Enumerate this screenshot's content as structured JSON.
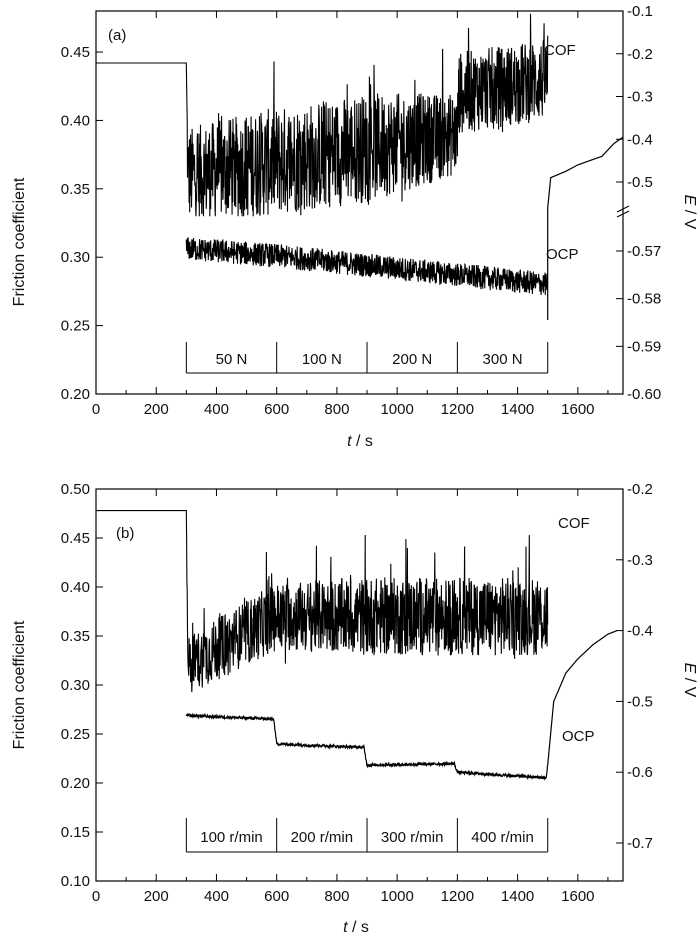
{
  "chart_data": [
    {
      "type": "line",
      "panel_label": "(a)",
      "xlabel_italic": "t",
      "xlabel_rest": " / s",
      "ylabel": "Friction coefficient",
      "y2label_italic": "E",
      "y2label_rest": " / V",
      "xlim": [
        0,
        1750
      ],
      "xticks": [
        0,
        200,
        400,
        600,
        800,
        1000,
        1200,
        1400,
        1600
      ],
      "ylim": [
        0.2,
        0.48
      ],
      "yticks": [
        "0.20",
        "0.25",
        "0.30",
        "0.35",
        "0.40",
        "0.45"
      ],
      "y2_upper_ticks": [
        "-0.1",
        "-0.2",
        "-0.3",
        "-0.4",
        "-0.5"
      ],
      "y2_lower_ticks": [
        "-0.57",
        "-0.58",
        "-0.59",
        "-0.60"
      ],
      "y2_broken_axis": true,
      "grid": false,
      "series": [
        {
          "name": "COF",
          "noisy": true,
          "x": [
            0,
            300,
            305,
            600,
            900,
            1200,
            1205,
            1500
          ],
          "y": [
            0.442,
            0.442,
            0.36,
            0.37,
            0.38,
            0.39,
            0.42,
            0.43
          ],
          "noise_amplitude": [
            0,
            0,
            0.035,
            0.04,
            0.04,
            0.03,
            0.03,
            0.03
          ]
        },
        {
          "name": "OCP",
          "noisy": true,
          "x": [
            300,
            600,
            900,
            1200,
            1500
          ],
          "y": [
            -0.5695,
            -0.571,
            -0.573,
            -0.575,
            -0.577
          ],
          "noise_amplitude": 0.0025
        },
        {
          "name": "OCP",
          "noisy": false,
          "x": [
            1510,
            1560,
            1600,
            1640,
            1680,
            1720,
            1750
          ],
          "y": [
            -0.49,
            -0.475,
            -0.46,
            -0.45,
            -0.44,
            -0.41,
            -0.395
          ]
        }
      ],
      "annotations": [
        "COF",
        "OCP"
      ],
      "stages": {
        "labels": [
          "50 N",
          "100 N",
          "200 N",
          "300 N"
        ],
        "boundaries": [
          300,
          600,
          900,
          1200,
          1500
        ]
      }
    },
    {
      "type": "line",
      "panel_label": "(b)",
      "xlabel_italic": "t",
      "xlabel_rest": " / s",
      "ylabel": "Friction coefficient",
      "y2label_italic": "E",
      "y2label_rest": " / V",
      "xlim": [
        0,
        1750
      ],
      "xticks": [
        0,
        200,
        400,
        600,
        800,
        1000,
        1200,
        1400,
        1600
      ],
      "ylim": [
        0.1,
        0.5
      ],
      "yticks": [
        "0.10",
        "0.15",
        "0.20",
        "0.25",
        "0.30",
        "0.35",
        "0.40",
        "0.45",
        "0.50"
      ],
      "y2lim": [
        -0.2,
        -0.78
      ],
      "y2ticks": [
        "-0.2",
        "-0.3",
        "-0.4",
        "-0.5",
        "-0.6",
        "-0.7"
      ],
      "grid": false,
      "series": [
        {
          "name": "COF",
          "noisy": true,
          "x": [
            0,
            300,
            305,
            600,
            900,
            1200,
            1500
          ],
          "y": [
            0.478,
            0.478,
            0.32,
            0.37,
            0.37,
            0.37,
            0.37
          ],
          "noise_amplitude": [
            0,
            0,
            0.03,
            0.035,
            0.04,
            0.04,
            0.04
          ]
        },
        {
          "name": "OCP",
          "noisy": false,
          "x": [
            300,
            590,
            600,
            890,
            900,
            1190,
            1200,
            1495,
            1500,
            1520,
            1560,
            1600,
            1650,
            1700,
            1730
          ],
          "y": [
            -0.52,
            -0.525,
            -0.56,
            -0.565,
            -0.59,
            -0.588,
            -0.6,
            -0.608,
            -0.59,
            -0.5,
            -0.46,
            -0.44,
            -0.42,
            -0.405,
            -0.4
          ]
        }
      ],
      "annotations": [
        "COF",
        "OCP"
      ],
      "stages": {
        "labels": [
          "100 r/min",
          "200 r/min",
          "300 r/min",
          "400 r/min"
        ],
        "boundaries": [
          300,
          600,
          900,
          1200,
          1500
        ]
      }
    }
  ]
}
